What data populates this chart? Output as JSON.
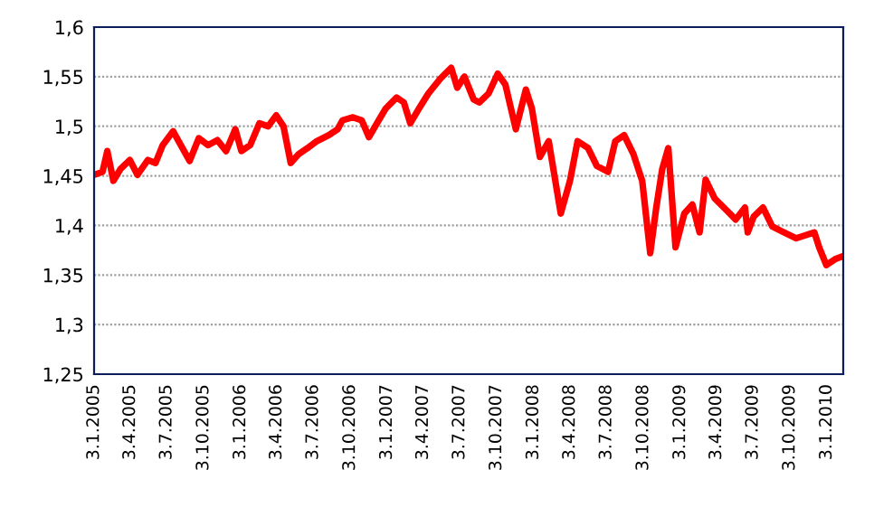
{
  "chart_data": {
    "type": "line",
    "x": [
      "2005-01-03",
      "2005-01-24",
      "2005-02-05",
      "2005-02-20",
      "2005-03-10",
      "2005-04-02",
      "2005-04-21",
      "2005-05-17",
      "2005-06-05",
      "2005-06-23",
      "2005-07-19",
      "2005-08-07",
      "2005-08-29",
      "2005-09-21",
      "2005-10-14",
      "2005-11-06",
      "2005-11-28",
      "2005-12-21",
      "2006-01-05",
      "2006-01-27",
      "2006-02-19",
      "2006-03-13",
      "2006-04-02",
      "2006-04-20",
      "2006-05-08",
      "2006-05-28",
      "2006-06-19",
      "2006-07-12",
      "2006-08-11",
      "2006-09-02",
      "2006-09-14",
      "2006-10-10",
      "2006-11-01",
      "2006-11-19",
      "2006-12-09",
      "2006-12-31",
      "2007-01-27",
      "2007-02-14",
      "2007-03-02",
      "2007-03-24",
      "2007-04-16",
      "2007-05-16",
      "2007-06-12",
      "2007-06-27",
      "2007-07-15",
      "2007-08-07",
      "2007-08-21",
      "2007-09-13",
      "2007-10-06",
      "2007-10-25",
      "2007-11-20",
      "2007-12-15",
      "2007-12-30",
      "2008-01-19",
      "2008-02-10",
      "2008-03-11",
      "2008-04-03",
      "2008-04-22",
      "2008-05-18",
      "2008-06-09",
      "2008-07-07",
      "2008-07-25",
      "2008-08-16",
      "2008-09-08",
      "2008-09-30",
      "2008-10-20",
      "2008-11-04",
      "2008-11-19",
      "2008-12-04",
      "2008-12-22",
      "2009-01-13",
      "2009-02-02",
      "2009-02-20",
      "2009-03-07",
      "2009-03-30",
      "2009-04-29",
      "2009-05-21",
      "2009-06-13",
      "2009-06-20",
      "2009-07-05",
      "2009-07-28",
      "2009-08-20",
      "2009-09-18",
      "2009-10-19",
      "2009-12-03",
      "2009-12-15",
      "2010-01-02",
      "2010-01-24",
      "2010-02-13"
    ],
    "series": [
      {
        "color": "#ff0000",
        "values": [
          1.451,
          1.454,
          1.475,
          1.445,
          1.457,
          1.466,
          1.451,
          1.466,
          1.463,
          1.481,
          1.495,
          1.481,
          1.465,
          1.488,
          1.481,
          1.486,
          1.475,
          1.497,
          1.475,
          1.481,
          1.503,
          1.5,
          1.511,
          1.5,
          1.463,
          1.472,
          1.478,
          1.485,
          1.491,
          1.497,
          1.506,
          1.509,
          1.506,
          1.489,
          1.503,
          1.518,
          1.529,
          1.524,
          1.503,
          1.518,
          1.533,
          1.548,
          1.559,
          1.539,
          1.55,
          1.527,
          1.524,
          1.533,
          1.553,
          1.542,
          1.497,
          1.537,
          1.518,
          1.469,
          1.485,
          1.412,
          1.445,
          1.485,
          1.478,
          1.46,
          1.454,
          1.485,
          1.491,
          1.472,
          1.445,
          1.372,
          1.418,
          1.457,
          1.478,
          1.378,
          1.412,
          1.421,
          1.393,
          1.446,
          1.427,
          1.415,
          1.406,
          1.418,
          1.393,
          1.409,
          1.418,
          1.399,
          1.393,
          1.387,
          1.393,
          1.378,
          1.36,
          1.366,
          1.369
        ]
      }
    ],
    "xlim": [
      "2005-01-03",
      "2010-02-13"
    ],
    "xticks": [
      {
        "value": "2005-01-03",
        "label": "3.1.2005"
      },
      {
        "value": "2005-04-03",
        "label": "3.4.2005"
      },
      {
        "value": "2005-07-03",
        "label": "3.7.2005"
      },
      {
        "value": "2005-10-03",
        "label": "3.10.2005"
      },
      {
        "value": "2006-01-03",
        "label": "3.1.2006"
      },
      {
        "value": "2006-04-03",
        "label": "3.4.2006"
      },
      {
        "value": "2006-07-03",
        "label": "3.7.2006"
      },
      {
        "value": "2006-10-03",
        "label": "3.10.2006"
      },
      {
        "value": "2007-01-03",
        "label": "3.1.2007"
      },
      {
        "value": "2007-04-03",
        "label": "3.4.2007"
      },
      {
        "value": "2007-07-03",
        "label": "3.7.2007"
      },
      {
        "value": "2007-10-03",
        "label": "3.10.2007"
      },
      {
        "value": "2008-01-03",
        "label": "3.1.2008"
      },
      {
        "value": "2008-04-03",
        "label": "3.4.2008"
      },
      {
        "value": "2008-07-03",
        "label": "3.7.2008"
      },
      {
        "value": "2008-10-03",
        "label": "3.10.2008"
      },
      {
        "value": "2009-01-03",
        "label": "3.1.2009"
      },
      {
        "value": "2009-04-03",
        "label": "3.4.2009"
      },
      {
        "value": "2009-07-03",
        "label": "3.7.2009"
      },
      {
        "value": "2009-10-03",
        "label": "3.10.2009"
      },
      {
        "value": "2010-01-03",
        "label": "3.1.2010"
      }
    ],
    "ylim": [
      1.25,
      1.6
    ],
    "yticks": [
      {
        "value": 1.25,
        "label": "1,25"
      },
      {
        "value": 1.3,
        "label": "1,3"
      },
      {
        "value": 1.35,
        "label": "1,35"
      },
      {
        "value": 1.4,
        "label": "1,4"
      },
      {
        "value": 1.45,
        "label": "1,45"
      },
      {
        "value": 1.5,
        "label": "1,5"
      },
      {
        "value": 1.55,
        "label": "1,55"
      },
      {
        "value": 1.6,
        "label": "1,6"
      }
    ],
    "grid": "y",
    "marker": "none",
    "line_style": "solid"
  }
}
